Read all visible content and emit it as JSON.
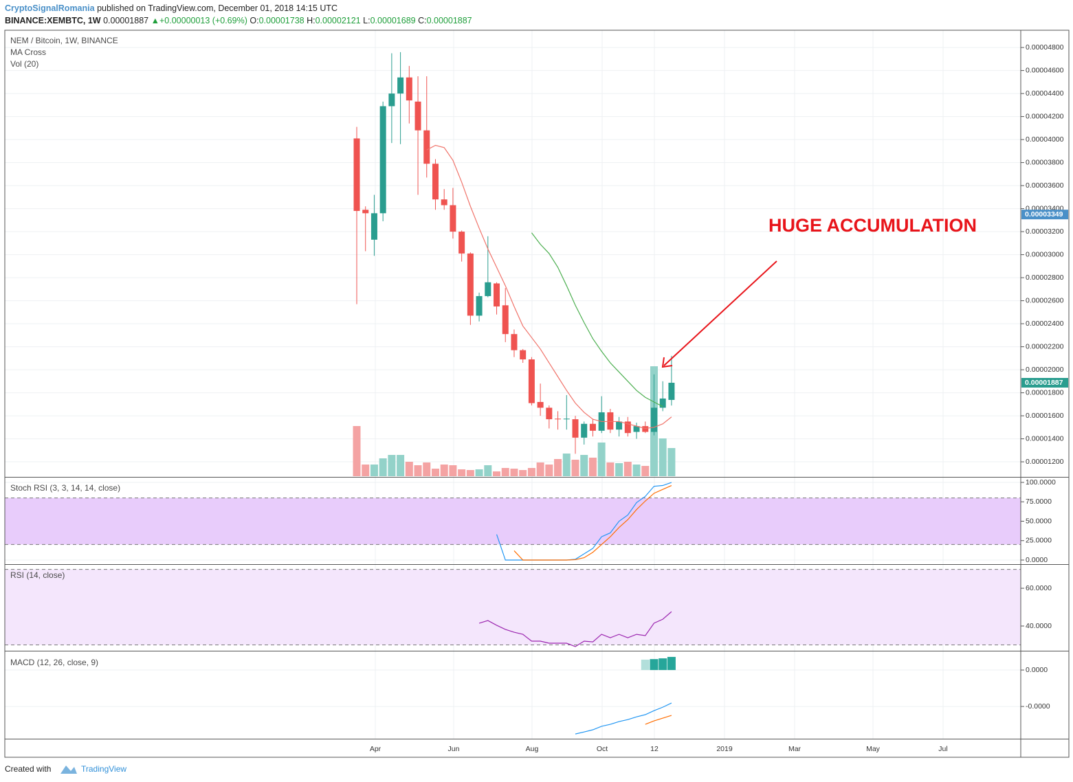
{
  "header": {
    "author": "CryptoSignalRomania",
    "published": "published on TradingView.com, December 01, 2018 14:15 UTC",
    "symbol": "BINANCE:XEMBTC, 1W",
    "price": "0.00001887",
    "change": "+0.00000013 (+0.69%)",
    "ohlc": [
      {
        "label": "O:",
        "value": "0.00001738"
      },
      {
        "label": "H:",
        "value": "0.00002121"
      },
      {
        "label": "L:",
        "value": "0.00001689"
      },
      {
        "label": "C:",
        "value": "0.00001887"
      }
    ]
  },
  "footer": {
    "created": "Created with",
    "brand": "TradingView"
  },
  "chart_data": [
    {
      "type": "candlestick",
      "title": "NEM / Bitcoin, 1W, BINANCE",
      "legend": [
        "MA Cross",
        "Vol (20)"
      ],
      "annotation": "HUGE ACCUMULATION",
      "grid": true,
      "xticks": [
        "Apr",
        "Jun",
        "Aug",
        "Oct",
        "12",
        "2019",
        "Mar",
        "May",
        "Jul"
      ],
      "open": [
        4.01e-05,
        3.39e-05,
        3.13e-05,
        3.36e-05,
        4.29e-05,
        4.4e-05,
        4.54e-05,
        4.33e-05,
        4.08e-05,
        3.79e-05,
        3.48e-05,
        3.43e-05,
        3.2e-05,
        3.01e-05,
        2.47e-05,
        2.64e-05,
        2.75e-05,
        2.56e-05,
        2.31e-05,
        2.17e-05,
        2.09e-05,
        1.72e-05,
        1.67e-05,
        1.575e-05,
        1.57e-05,
        1.57e-05,
        1.41e-05,
        1.53e-05,
        1.47e-05,
        1.63e-05,
        1.48e-05,
        1.55e-05,
        1.46e-05,
        1.51e-05,
        1.46e-05,
        1.67e-05,
        1.738e-05
      ],
      "high": [
        4.11e-05,
        3.42e-05,
        3.52e-05,
        4.33e-05,
        4.75e-05,
        4.76e-05,
        4.64e-05,
        4.55e-05,
        4.55e-05,
        3.83e-05,
        3.57e-05,
        3.58e-05,
        3.21e-05,
        3.02e-05,
        2.67e-05,
        3.16e-05,
        2.76e-05,
        2.71e-05,
        2.35e-05,
        2.18e-05,
        2.11e-05,
        1.88e-05,
        1.69e-05,
        1.64e-05,
        1.78e-05,
        1.6e-05,
        1.55e-05,
        1.57e-05,
        1.77e-05,
        1.66e-05,
        1.59e-05,
        1.59e-05,
        1.54e-05,
        1.55e-05,
        1.96e-05,
        1.9e-05,
        2.121e-05
      ],
      "low": [
        2.57e-05,
        3.03e-05,
        2.99e-05,
        3.29e-05,
        3.97e-05,
        3.96e-05,
        4.14e-05,
        3.52e-05,
        3.67e-05,
        3.39e-05,
        3.39e-05,
        3.14e-05,
        2.94e-05,
        2.39e-05,
        2.42e-05,
        2.63e-05,
        2.48e-05,
        2.24e-05,
        2.11e-05,
        2.06e-05,
        1.69e-05,
        1.6e-05,
        1.49e-05,
        1.48e-05,
        1.48e-05,
        1.27e-05,
        1.35e-05,
        1.42e-05,
        1.45e-05,
        1.45e-05,
        1.42e-05,
        1.42e-05,
        1.4e-05,
        1.45e-05,
        1.43e-05,
        1.64e-05,
        1.689e-05
      ],
      "close": [
        3.38e-05,
        3.36e-05,
        3.36e-05,
        4.29e-05,
        4.4e-05,
        4.54e-05,
        4.34e-05,
        4.08e-05,
        3.79e-05,
        3.48e-05,
        3.43e-05,
        3.2e-05,
        3.01e-05,
        2.47e-05,
        2.64e-05,
        2.76e-05,
        2.55e-05,
        2.31e-05,
        2.17e-05,
        2.09e-05,
        1.71e-05,
        1.67e-05,
        1.57e-05,
        1.57e-05,
        1.575e-05,
        1.41e-05,
        1.53e-05,
        1.47e-05,
        1.63e-05,
        1.48e-05,
        1.55e-05,
        1.45e-05,
        1.51e-05,
        1.46e-05,
        1.67e-05,
        1.75e-05,
        1.887e-05
      ],
      "up_color": "#2a9d8f",
      "down_color": "#ef5350",
      "volume": {
        "values": [
          73,
          17,
          17,
          26,
          31,
          31,
          21,
          16,
          20,
          11,
          17,
          16,
          10,
          9,
          10,
          16,
          7,
          12,
          11,
          9,
          12,
          20,
          17,
          25,
          33,
          24,
          31,
          27,
          49,
          20,
          19,
          21,
          17,
          15,
          160,
          55,
          41
        ],
        "up_color": "#93d2c9",
        "down_color": "#f4a3a3"
      },
      "series": [
        {
          "color": "#f0736a",
          "values": [
            null,
            null,
            null,
            null,
            null,
            null,
            null,
            null,
            3.91e-05,
            3.95e-05,
            3.93e-05,
            3.82e-05,
            3.63e-05,
            3.42e-05,
            3.23e-05,
            3.05e-05,
            2.89e-05,
            2.73e-05,
            2.55e-05,
            2.38e-05,
            2.28e-05,
            2.18e-05,
            2.06e-05,
            1.94e-05,
            1.82e-05,
            1.71e-05,
            1.63e-05,
            1.57e-05,
            1.55e-05,
            1.55e-05,
            1.55e-05,
            1.53e-05,
            1.51e-05,
            1.49e-05,
            1.5e-05,
            1.53e-05,
            1.59e-05
          ]
        },
        {
          "color": "#4caf50",
          "values": [
            null,
            null,
            null,
            null,
            null,
            null,
            null,
            null,
            null,
            null,
            null,
            null,
            null,
            null,
            null,
            null,
            null,
            null,
            null,
            null,
            3.19e-05,
            3.09e-05,
            3.01e-05,
            2.89e-05,
            2.73e-05,
            2.56e-05,
            2.41e-05,
            2.27e-05,
            2.16e-05,
            2.06e-05,
            1.98e-05,
            1.9e-05,
            1.82e-05,
            1.76e-05,
            1.72e-05,
            1.68e-05,
            null
          ]
        }
      ],
      "ylim": [
        1.069e-05,
        4.95e-05
      ],
      "yticks": [
        {
          "value": 4.8e-05,
          "label": "0.00004800"
        },
        {
          "value": 4.6e-05,
          "label": "0.00004600"
        },
        {
          "value": 4.4e-05,
          "label": "0.00004400"
        },
        {
          "value": 4.2e-05,
          "label": "0.00004200"
        },
        {
          "value": 4e-05,
          "label": "0.00004000"
        },
        {
          "value": 3.8e-05,
          "label": "0.00003800"
        },
        {
          "value": 3.6e-05,
          "label": "0.00003600"
        },
        {
          "value": 3.4e-05,
          "label": "0.00003400"
        },
        {
          "value": 3.2e-05,
          "label": "0.00003200"
        },
        {
          "value": 3e-05,
          "label": "0.00003000"
        },
        {
          "value": 2.8e-05,
          "label": "0.00002800"
        },
        {
          "value": 2.6e-05,
          "label": "0.00002600"
        },
        {
          "value": 2.4e-05,
          "label": "0.00002400"
        },
        {
          "value": 2.2e-05,
          "label": "0.00002200"
        },
        {
          "value": 2e-05,
          "label": "0.00002000"
        },
        {
          "value": 1.8e-05,
          "label": "0.00001800"
        },
        {
          "value": 1.6e-05,
          "label": "0.00001600"
        },
        {
          "value": 1.4e-05,
          "label": "0.00001400"
        },
        {
          "value": 1.2e-05,
          "label": "0.00001200"
        }
      ],
      "price_labels": [
        {
          "value": 3.349e-05,
          "label": "0.00003349",
          "color": "#4a90c8"
        },
        {
          "value": 1.887e-05,
          "label": "0.00001887",
          "color": "#2a9d8f"
        }
      ]
    },
    {
      "type": "line",
      "title": "Stoch RSI (3, 3, 14, 14, close)",
      "band": [
        20,
        80
      ],
      "band_color": "#e8ccfb",
      "series": [
        {
          "color": "#2196f3",
          "values": [
            null,
            null,
            null,
            null,
            null,
            null,
            null,
            null,
            null,
            null,
            null,
            null,
            null,
            null,
            null,
            null,
            33,
            0,
            0,
            0,
            0,
            0,
            0,
            0,
            0,
            1,
            8,
            15,
            30,
            35,
            50,
            58,
            74,
            82,
            95,
            96,
            100
          ]
        },
        {
          "color": "#ff6d00",
          "values": [
            null,
            null,
            null,
            null,
            null,
            null,
            null,
            null,
            null,
            null,
            null,
            null,
            null,
            null,
            null,
            null,
            null,
            null,
            12,
            0,
            0,
            0,
            0,
            0,
            0,
            0.5,
            3,
            10,
            20,
            30,
            42,
            52,
            65,
            76,
            86,
            91,
            96
          ]
        }
      ],
      "ylim": [
        -5.3,
        106.2
      ],
      "yticks": [
        {
          "value": 100,
          "label": "100.0000"
        },
        {
          "value": 75,
          "label": "75.0000"
        },
        {
          "value": 50,
          "label": "50.0000"
        },
        {
          "value": 25,
          "label": "25.0000"
        },
        {
          "value": 0,
          "label": "0.0000"
        }
      ]
    },
    {
      "type": "line",
      "title": "RSI (14, close)",
      "band": [
        30,
        70
      ],
      "band_color": "#f4e6fc",
      "series": [
        {
          "color": "#9c27b0",
          "values": [
            null,
            null,
            null,
            null,
            null,
            null,
            null,
            null,
            null,
            null,
            null,
            null,
            null,
            null,
            41.5,
            42.9,
            40.4,
            38.2,
            36.7,
            35.6,
            32.0,
            32.0,
            30.9,
            30.9,
            30.9,
            29.1,
            32.0,
            31.6,
            35.6,
            33.8,
            35.6,
            33.8,
            35.6,
            34.9,
            41.5,
            43.6,
            47.6
          ]
        }
      ],
      "ylim": [
        26.9,
        72.4
      ],
      "yticks": [
        {
          "value": 60,
          "label": "60.0000"
        },
        {
          "value": 40,
          "label": "40.0000"
        }
      ]
    },
    {
      "type": "macd",
      "title": "MACD (12, 26, close, 9)",
      "series": [
        {
          "color": "#2196f3",
          "values": [
            null,
            null,
            null,
            null,
            null,
            null,
            null,
            null,
            null,
            null,
            null,
            null,
            null,
            null,
            null,
            null,
            null,
            null,
            null,
            null,
            null,
            null,
            null,
            null,
            null,
            -3.51e-06,
            -3.4e-06,
            -3.28e-06,
            -3.09e-06,
            -2.98e-06,
            -2.83e-06,
            -2.72e-06,
            -2.57e-06,
            -2.45e-06,
            -2.23e-06,
            -2.04e-06,
            -1.81e-06
          ]
        },
        {
          "color": "#ff6d00",
          "values": [
            null,
            null,
            null,
            null,
            null,
            null,
            null,
            null,
            null,
            null,
            null,
            null,
            null,
            null,
            null,
            null,
            null,
            null,
            null,
            null,
            null,
            null,
            null,
            null,
            null,
            null,
            null,
            null,
            null,
            null,
            null,
            null,
            null,
            -2.98e-06,
            -2.79e-06,
            -2.64e-06,
            -2.49e-06
          ]
        }
      ],
      "histogram": {
        "values": [
          null,
          null,
          null,
          null,
          null,
          null,
          null,
          null,
          null,
          null,
          null,
          null,
          null,
          null,
          null,
          null,
          null,
          null,
          null,
          null,
          null,
          null,
          null,
          null,
          null,
          null,
          null,
          null,
          null,
          null,
          null,
          null,
          null,
          5.7e-07,
          6e-07,
          6.4e-07,
          7.2e-07
        ],
        "color": "#26a69a",
        "faded_color": "#b2dfdb"
      },
      "ylim": [
        -3.77e-06,
        1.02e-06
      ],
      "yticks": [
        {
          "value": 0,
          "label": "0.0000"
        },
        {
          "value": -2e-06,
          "label": "-0.0000"
        }
      ]
    }
  ]
}
